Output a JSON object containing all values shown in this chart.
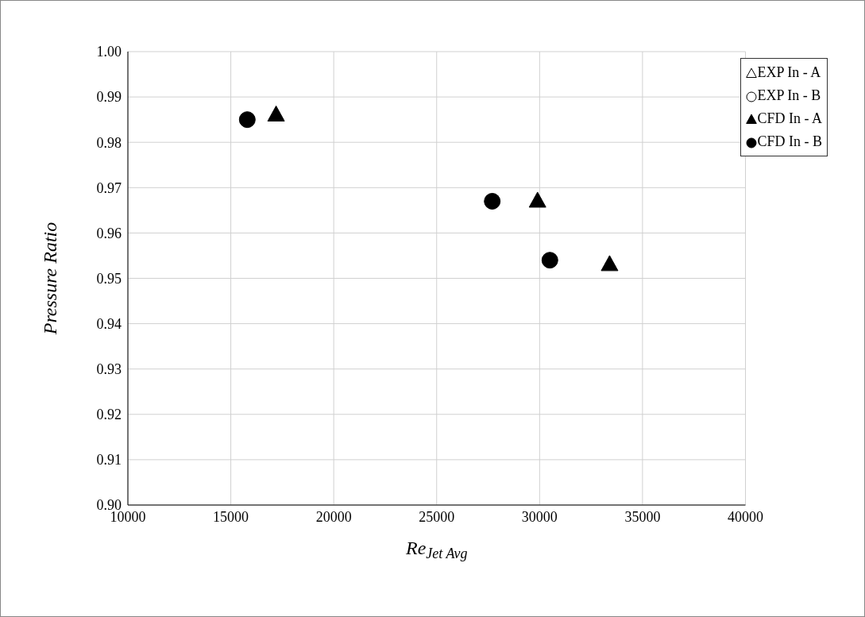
{
  "chart_data": {
    "type": "scatter",
    "xlabel": "Re$_{Jet Avg}$",
    "ylabel": "Pressure Ratio",
    "xlim": [
      10000,
      40000
    ],
    "xticks": [
      10000,
      15000,
      20000,
      25000,
      30000,
      35000,
      40000
    ],
    "ylim": [
      0.9,
      1.0
    ],
    "yticks": [
      {
        "value": 0.9,
        "label": "0.90"
      },
      {
        "value": 0.91,
        "label": "0.91"
      },
      {
        "value": 0.92,
        "label": "0.92"
      },
      {
        "value": 0.93,
        "label": "0.93"
      },
      {
        "value": 0.94,
        "label": "0.94"
      },
      {
        "value": 0.95,
        "label": "0.95"
      },
      {
        "value": 0.96,
        "label": "0.96"
      },
      {
        "value": 0.97,
        "label": "0.97"
      },
      {
        "value": 0.98,
        "label": "0.98"
      },
      {
        "value": 0.99,
        "label": "0.99"
      },
      {
        "value": 1.0,
        "label": "1.00"
      }
    ],
    "grid": true,
    "legend": "top right",
    "series": [
      {
        "name": "EXP In - A",
        "color": "#ffffff",
        "marker": "triangle"
      },
      {
        "name": "EXP In - B",
        "color": "#ffffff",
        "marker": "circle"
      },
      {
        "name": "CFD In - A",
        "color": "#000000",
        "marker": "triangle",
        "x": [
          17200,
          29900,
          33400
        ],
        "values": [
          0.986,
          0.967,
          0.953
        ]
      },
      {
        "name": "CFD In - B",
        "color": "#000000",
        "marker": "circle",
        "x": [
          15800,
          27700,
          30500
        ],
        "values": [
          0.985,
          0.967,
          0.954
        ]
      }
    ]
  }
}
